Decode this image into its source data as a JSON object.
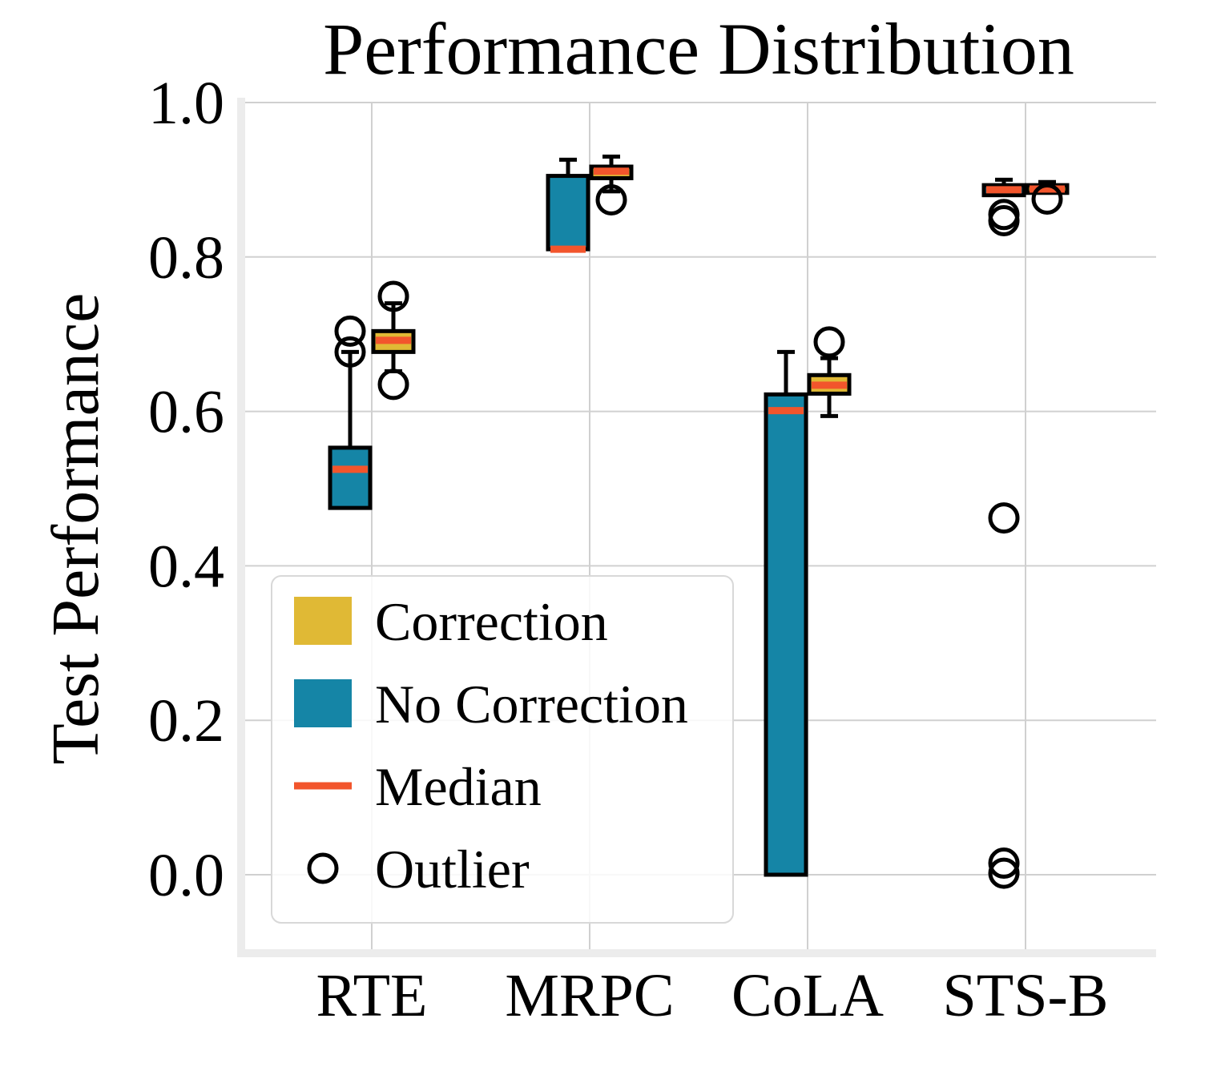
{
  "chart_data": {
    "type": "box",
    "title": "Performance Distribution",
    "ylabel": "Test Performance",
    "xlabel": "",
    "ylim": [
      -0.1,
      1.0
    ],
    "yticks": [
      {
        "value": 0.0,
        "label": "0.0"
      },
      {
        "value": 0.2,
        "label": "0.2"
      },
      {
        "value": 0.4,
        "label": "0.4"
      },
      {
        "value": 0.6,
        "label": "0.6"
      },
      {
        "value": 0.8,
        "label": "0.8"
      },
      {
        "value": 1.0,
        "label": "1.0"
      }
    ],
    "categories": [
      "RTE",
      "MRPC",
      "CoLA",
      "STS-B"
    ],
    "grid": true,
    "legend_position": "lower-left",
    "legend": [
      {
        "key": "correction",
        "label": "Correction",
        "type": "patch"
      },
      {
        "key": "no_correction",
        "label": "No Correction",
        "type": "patch"
      },
      {
        "key": "median",
        "label": "Median",
        "type": "line"
      },
      {
        "key": "outlier",
        "label": "Outlier",
        "type": "marker"
      }
    ],
    "colors": {
      "correction": "#e0b935",
      "no_correction": "#1585a6",
      "median": "#f2552c",
      "grid": "#d0d0d0",
      "outline": "#000000"
    },
    "series": [
      {
        "name": "No Correction",
        "key": "no_correction",
        "boxes": [
          {
            "category": "RTE",
            "whislo": 0.475,
            "q1": 0.475,
            "median": 0.525,
            "q3": 0.553,
            "whishi": 0.677,
            "fliers": [
              0.704,
              0.677
            ]
          },
          {
            "category": "MRPC",
            "whislo": 0.81,
            "q1": 0.81,
            "median": 0.81,
            "q3": 0.905,
            "whishi": 0.926,
            "fliers": []
          },
          {
            "category": "CoLA",
            "whislo": 0.0,
            "q1": 0.0,
            "median": 0.601,
            "q3": 0.622,
            "whishi": 0.677,
            "fliers": []
          },
          {
            "category": "STS-B",
            "whislo": 0.88,
            "q1": 0.88,
            "median": 0.887,
            "q3": 0.893,
            "whishi": 0.9,
            "fliers": [
              0.855,
              0.847,
              0.462,
              0.015,
              0.002
            ]
          }
        ]
      },
      {
        "name": "Correction",
        "key": "correction",
        "boxes": [
          {
            "category": "RTE",
            "whislo": 0.652,
            "q1": 0.677,
            "median": 0.692,
            "q3": 0.704,
            "whishi": 0.74,
            "fliers": [
              0.749,
              0.635
            ]
          },
          {
            "category": "MRPC",
            "whislo": 0.885,
            "q1": 0.902,
            "median": 0.911,
            "q3": 0.917,
            "whishi": 0.93,
            "fliers": [
              0.874
            ]
          },
          {
            "category": "CoLA",
            "whislo": 0.594,
            "q1": 0.623,
            "median": 0.634,
            "q3": 0.647,
            "whishi": 0.669,
            "fliers": [
              0.69
            ]
          },
          {
            "category": "STS-B",
            "whislo": 0.883,
            "q1": 0.883,
            "median": 0.888,
            "q3": 0.893,
            "whishi": 0.897,
            "fliers": [
              0.875
            ]
          }
        ]
      }
    ]
  }
}
